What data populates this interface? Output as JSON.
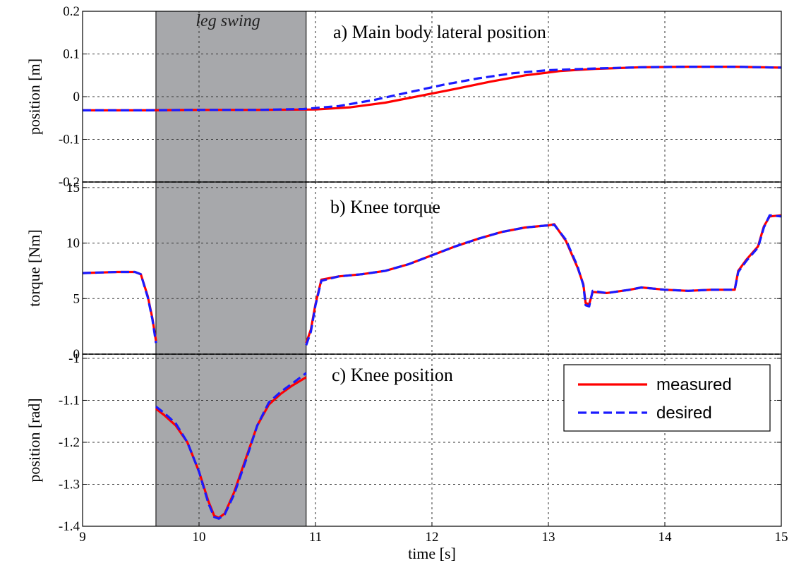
{
  "chart_data": {
    "type": "line",
    "xlabel": "time [s]",
    "xlim": [
      9,
      15
    ],
    "xticks": [
      9,
      10,
      11,
      12,
      13,
      14,
      15
    ],
    "grid": true,
    "shaded_region": {
      "x": [
        9.63,
        10.92
      ],
      "label": "leg swing",
      "color": "#a7a8ab"
    },
    "legend": {
      "placement": "panel-c top-right",
      "entries": [
        {
          "name": "measured",
          "color": "#ff0000",
          "style": "solid"
        },
        {
          "name": "desired",
          "color": "#1a1aff",
          "style": "dashed"
        }
      ]
    },
    "panels": [
      {
        "id": "a",
        "title": "a) Main body lateral position",
        "ylabel": "position [m]",
        "ylim": [
          -0.2,
          0.2
        ],
        "yticks": [
          0.2,
          0.1,
          0,
          -0.1,
          -0.2
        ],
        "ytick_labels": [
          "0.2",
          "0.1",
          "0",
          "-0.1",
          "-0.2"
        ],
        "series": [
          {
            "name": "measured",
            "segments": [
              [
                [
                  9.0,
                  -0.032
                ],
                [
                  9.5,
                  -0.032
                ],
                [
                  10.0,
                  -0.031
                ],
                [
                  10.5,
                  -0.031
                ],
                [
                  11.0,
                  -0.03
                ],
                [
                  11.3,
                  -0.025
                ],
                [
                  11.6,
                  -0.014
                ],
                [
                  11.9,
                  0.002
                ],
                [
                  12.2,
                  0.018
                ],
                [
                  12.5,
                  0.035
                ],
                [
                  12.8,
                  0.05
                ],
                [
                  13.1,
                  0.06
                ],
                [
                  13.4,
                  0.065
                ],
                [
                  13.8,
                  0.069
                ],
                [
                  14.2,
                  0.07
                ],
                [
                  14.6,
                  0.07
                ],
                [
                  15.0,
                  0.068
                ]
              ]
            ]
          },
          {
            "name": "desired",
            "segments": [
              [
                [
                  9.0,
                  -0.032
                ],
                [
                  9.5,
                  -0.032
                ],
                [
                  10.0,
                  -0.031
                ],
                [
                  10.5,
                  -0.031
                ],
                [
                  10.9,
                  -0.029
                ],
                [
                  11.2,
                  -0.022
                ],
                [
                  11.5,
                  -0.008
                ],
                [
                  11.8,
                  0.01
                ],
                [
                  12.1,
                  0.028
                ],
                [
                  12.4,
                  0.043
                ],
                [
                  12.7,
                  0.055
                ],
                [
                  13.0,
                  0.062
                ],
                [
                  13.4,
                  0.066
                ],
                [
                  13.8,
                  0.069
                ],
                [
                  14.2,
                  0.07
                ],
                [
                  14.6,
                  0.07
                ],
                [
                  15.0,
                  0.068
                ]
              ]
            ]
          }
        ]
      },
      {
        "id": "b",
        "title": "b) Knee torque",
        "ylabel": "torque [Nm]",
        "ylim": [
          0,
          15.5
        ],
        "yticks": [
          15,
          10,
          5,
          0
        ],
        "ytick_labels": [
          "15",
          "10",
          "5",
          "0"
        ],
        "series": [
          {
            "name": "measured",
            "segments": [
              [
                [
                  9.0,
                  7.3
                ],
                [
                  9.15,
                  7.35
                ],
                [
                  9.3,
                  7.4
                ],
                [
                  9.45,
                  7.4
                ],
                [
                  9.5,
                  7.2
                ],
                [
                  9.56,
                  5.2
                ],
                [
                  9.6,
                  3.2
                ],
                [
                  9.63,
                  1.2
                ]
              ],
              [
                [
                  10.92,
                  1.0
                ],
                [
                  10.96,
                  2.2
                ],
                [
                  11.0,
                  4.5
                ],
                [
                  11.05,
                  6.7
                ],
                [
                  11.2,
                  7.0
                ],
                [
                  11.4,
                  7.2
                ],
                [
                  11.6,
                  7.5
                ],
                [
                  11.8,
                  8.1
                ],
                [
                  12.0,
                  8.9
                ],
                [
                  12.2,
                  9.7
                ],
                [
                  12.4,
                  10.4
                ],
                [
                  12.6,
                  11.0
                ],
                [
                  12.8,
                  11.4
                ],
                [
                  13.0,
                  11.6
                ],
                [
                  13.05,
                  11.7
                ],
                [
                  13.15,
                  10.2
                ],
                [
                  13.25,
                  7.8
                ],
                [
                  13.3,
                  6.3
                ],
                [
                  13.32,
                  4.6
                ],
                [
                  13.35,
                  4.5
                ],
                [
                  13.38,
                  5.6
                ],
                [
                  13.5,
                  5.5
                ],
                [
                  13.7,
                  5.8
                ],
                [
                  13.8,
                  6.0
                ],
                [
                  14.0,
                  5.8
                ],
                [
                  14.2,
                  5.7
                ],
                [
                  14.4,
                  5.8
                ],
                [
                  14.6,
                  5.8
                ],
                [
                  14.63,
                  7.5
                ],
                [
                  14.7,
                  8.5
                ],
                [
                  14.8,
                  9.7
                ],
                [
                  14.85,
                  11.5
                ],
                [
                  14.9,
                  12.4
                ],
                [
                  15.0,
                  12.5
                ]
              ]
            ]
          },
          {
            "name": "desired",
            "segments": [
              [
                [
                  9.0,
                  7.3
                ],
                [
                  9.15,
                  7.35
                ],
                [
                  9.3,
                  7.4
                ],
                [
                  9.45,
                  7.4
                ],
                [
                  9.5,
                  7.2
                ],
                [
                  9.56,
                  5.1
                ],
                [
                  9.6,
                  3.1
                ],
                [
                  9.63,
                  1.0
                ]
              ],
              [
                [
                  10.92,
                  0.8
                ],
                [
                  10.96,
                  2.0
                ],
                [
                  11.0,
                  4.4
                ],
                [
                  11.05,
                  6.6
                ],
                [
                  11.2,
                  7.0
                ],
                [
                  11.4,
                  7.2
                ],
                [
                  11.6,
                  7.5
                ],
                [
                  11.8,
                  8.1
                ],
                [
                  12.0,
                  8.9
                ],
                [
                  12.2,
                  9.7
                ],
                [
                  12.4,
                  10.4
                ],
                [
                  12.6,
                  11.0
                ],
                [
                  12.8,
                  11.4
                ],
                [
                  13.0,
                  11.6
                ],
                [
                  13.05,
                  11.65
                ],
                [
                  13.15,
                  10.3
                ],
                [
                  13.25,
                  7.9
                ],
                [
                  13.3,
                  6.2
                ],
                [
                  13.32,
                  4.4
                ],
                [
                  13.35,
                  4.3
                ],
                [
                  13.38,
                  5.7
                ],
                [
                  13.5,
                  5.5
                ],
                [
                  13.7,
                  5.8
                ],
                [
                  13.8,
                  6.0
                ],
                [
                  14.0,
                  5.8
                ],
                [
                  14.2,
                  5.7
                ],
                [
                  14.4,
                  5.8
                ],
                [
                  14.6,
                  5.8
                ],
                [
                  14.63,
                  7.4
                ],
                [
                  14.7,
                  8.4
                ],
                [
                  14.8,
                  9.6
                ],
                [
                  14.85,
                  11.4
                ],
                [
                  14.9,
                  12.5
                ],
                [
                  15.0,
                  12.4
                ]
              ]
            ]
          }
        ]
      },
      {
        "id": "c",
        "title": "c) Knee position",
        "ylabel": "position [rad]",
        "ylim": [
          -1.4,
          -0.99
        ],
        "yticks": [
          -1,
          -1.1,
          -1.2,
          -1.3,
          -1.4
        ],
        "ytick_labels": [
          "-1",
          "-1.1",
          "-1.2",
          "-1.3",
          "-1.4"
        ],
        "series": [
          {
            "name": "measured",
            "segments": [
              [
                [
                  9.63,
                  -1.12
                ],
                [
                  9.7,
                  -1.135
                ],
                [
                  9.8,
                  -1.16
                ],
                [
                  9.9,
                  -1.2
                ],
                [
                  10.0,
                  -1.27
                ],
                [
                  10.08,
                  -1.34
                ],
                [
                  10.13,
                  -1.375
                ],
                [
                  10.17,
                  -1.38
                ],
                [
                  10.22,
                  -1.37
                ],
                [
                  10.3,
                  -1.32
                ],
                [
                  10.4,
                  -1.24
                ],
                [
                  10.5,
                  -1.16
                ],
                [
                  10.6,
                  -1.11
                ],
                [
                  10.7,
                  -1.085
                ],
                [
                  10.8,
                  -1.065
                ],
                [
                  10.92,
                  -1.045
                ]
              ]
            ]
          },
          {
            "name": "desired",
            "segments": [
              [
                [
                  9.63,
                  -1.115
                ],
                [
                  9.7,
                  -1.13
                ],
                [
                  9.8,
                  -1.155
                ],
                [
                  9.9,
                  -1.2
                ],
                [
                  10.0,
                  -1.27
                ],
                [
                  10.08,
                  -1.345
                ],
                [
                  10.13,
                  -1.378
                ],
                [
                  10.17,
                  -1.382
                ],
                [
                  10.22,
                  -1.372
                ],
                [
                  10.3,
                  -1.325
                ],
                [
                  10.4,
                  -1.245
                ],
                [
                  10.5,
                  -1.16
                ],
                [
                  10.6,
                  -1.105
                ],
                [
                  10.7,
                  -1.08
                ],
                [
                  10.8,
                  -1.06
                ],
                [
                  10.92,
                  -1.035
                ]
              ]
            ]
          }
        ]
      }
    ]
  }
}
